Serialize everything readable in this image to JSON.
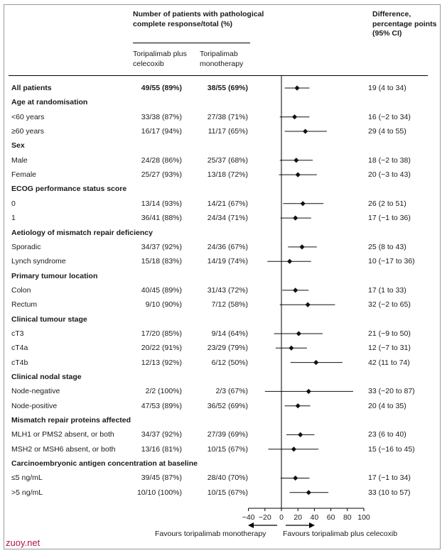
{
  "header": {
    "col_response": "Number of patients with pathological complete response/total (%)",
    "col_arm1": "Toripalimab plus celecoxib",
    "col_arm2": "Toripalimab monotherapy",
    "col_diff": "Difference, percentage points (95% CI)"
  },
  "footer": {
    "left_label": "Favours toripalimab monotherapy",
    "right_label": "Favours toripalimab plus celecoxib"
  },
  "watermark": "zuoy.net",
  "colors": {
    "text": "#1a1a1a",
    "marker": "#111111",
    "rule": "#000000",
    "watermark": "#b5124a"
  },
  "chart_data": {
    "type": "forest",
    "xlim": [
      -40,
      100
    ],
    "xticks": [
      -40,
      -20,
      0,
      20,
      40,
      60,
      80,
      100
    ],
    "reference_line": 0,
    "rows": [
      {
        "label": "All patients",
        "kind": "overall",
        "arm1": "49/55 (89%)",
        "arm2": "38/55 (69%)",
        "diff": "19 (4 to 34)",
        "est": 19,
        "lo": 4,
        "hi": 34
      },
      {
        "label": "Age at randomisation",
        "kind": "header"
      },
      {
        "label": "<60 years",
        "kind": "row",
        "arm1": "33/38 (87%)",
        "arm2": "27/38 (71%)",
        "diff": "16 (−2 to 34)",
        "est": 16,
        "lo": -2,
        "hi": 34
      },
      {
        "label": "≥60 years",
        "kind": "row",
        "arm1": "16/17 (94%)",
        "arm2": "11/17 (65%)",
        "diff": "29 (4 to 55)",
        "est": 29,
        "lo": 4,
        "hi": 55
      },
      {
        "label": "Sex",
        "kind": "header"
      },
      {
        "label": "Male",
        "kind": "row",
        "arm1": "24/28 (86%)",
        "arm2": "25/37 (68%)",
        "diff": "18 (−2 to 38)",
        "est": 18,
        "lo": -2,
        "hi": 38
      },
      {
        "label": "Female",
        "kind": "row",
        "arm1": "25/27 (93%)",
        "arm2": "13/18 (72%)",
        "diff": "20 (−3 to 43)",
        "est": 20,
        "lo": -3,
        "hi": 43
      },
      {
        "label": "ECOG performance status score",
        "kind": "header"
      },
      {
        "label": "0",
        "kind": "row",
        "arm1": "13/14 (93%)",
        "arm2": "14/21 (67%)",
        "diff": "26 (2 to 51)",
        "est": 26,
        "lo": 2,
        "hi": 51
      },
      {
        "label": "1",
        "kind": "row",
        "arm1": "36/41 (88%)",
        "arm2": "24/34 (71%)",
        "diff": "17 (−1 to 36)",
        "est": 17,
        "lo": -1,
        "hi": 36
      },
      {
        "label": "Aetiology of mismatch repair deficiency",
        "kind": "header"
      },
      {
        "label": "Sporadic",
        "kind": "row",
        "arm1": "34/37 (92%)",
        "arm2": "24/36 (67%)",
        "diff": "25 (8 to 43)",
        "est": 25,
        "lo": 8,
        "hi": 43
      },
      {
        "label": "Lynch syndrome",
        "kind": "row",
        "arm1": "15/18 (83%)",
        "arm2": "14/19 (74%)",
        "diff": "10 (−17 to 36)",
        "est": 10,
        "lo": -17,
        "hi": 36
      },
      {
        "label": "Primary tumour location",
        "kind": "header"
      },
      {
        "label": "Colon",
        "kind": "row",
        "arm1": "40/45 (89%)",
        "arm2": "31/43 (72%)",
        "diff": "17 (1 to 33)",
        "est": 17,
        "lo": 1,
        "hi": 33
      },
      {
        "label": "Rectum",
        "kind": "row",
        "arm1": "9/10 (90%)",
        "arm2": "7/12 (58%)",
        "diff": "32 (−2 to 65)",
        "est": 32,
        "lo": -2,
        "hi": 65
      },
      {
        "label": "Clinical tumour stage",
        "kind": "header"
      },
      {
        "label": "cT3",
        "kind": "row",
        "arm1": "17/20 (85%)",
        "arm2": "9/14 (64%)",
        "diff": "21 (−9 to 50)",
        "est": 21,
        "lo": -9,
        "hi": 50
      },
      {
        "label": "cT4a",
        "kind": "row",
        "arm1": "20/22 (91%)",
        "arm2": "23/29 (79%)",
        "diff": "12 (−7 to 31)",
        "est": 12,
        "lo": -7,
        "hi": 31
      },
      {
        "label": "cT4b",
        "kind": "row",
        "arm1": "12/13 (92%)",
        "arm2": "6/12 (50%)",
        "diff": "42 (11 to 74)",
        "est": 42,
        "lo": 11,
        "hi": 74
      },
      {
        "label": "Clinical nodal stage",
        "kind": "header"
      },
      {
        "label": "Node-negative",
        "kind": "row",
        "arm1": "2/2 (100%)",
        "arm2": "2/3 (67%)",
        "diff": "33 (−20 to 87)",
        "est": 33,
        "lo": -20,
        "hi": 87
      },
      {
        "label": "Node-positive",
        "kind": "row",
        "arm1": "47/53 (89%)",
        "arm2": "36/52 (69%)",
        "diff": "20 (4 to 35)",
        "est": 20,
        "lo": 4,
        "hi": 35
      },
      {
        "label": "Mismatch repair proteins affected",
        "kind": "header"
      },
      {
        "label": "MLH1 or PMS2 absent, or both",
        "kind": "row",
        "arm1": "34/37 (92%)",
        "arm2": "27/39 (69%)",
        "diff": "23 (6 to 40)",
        "est": 23,
        "lo": 6,
        "hi": 40
      },
      {
        "label": "MSH2 or MSH6 absent, or both",
        "kind": "row",
        "arm1": "13/16 (81%)",
        "arm2": "10/15 (67%)",
        "diff": "15 (−16 to 45)",
        "est": 15,
        "lo": -16,
        "hi": 45
      },
      {
        "label": "Carcinoembryonic antigen concentration at baseline",
        "kind": "header"
      },
      {
        "label": "≤5 ng/mL",
        "kind": "row",
        "arm1": "39/45 (87%)",
        "arm2": "28/40 (70%)",
        "diff": "17 (−1 to 34)",
        "est": 17,
        "lo": -1,
        "hi": 34
      },
      {
        "label": ">5 ng/mL",
        "kind": "row",
        "arm1": "10/10 (100%)",
        "arm2": "10/15 (67%)",
        "diff": "33 (10 to 57)",
        "est": 33,
        "lo": 10,
        "hi": 57
      }
    ]
  }
}
